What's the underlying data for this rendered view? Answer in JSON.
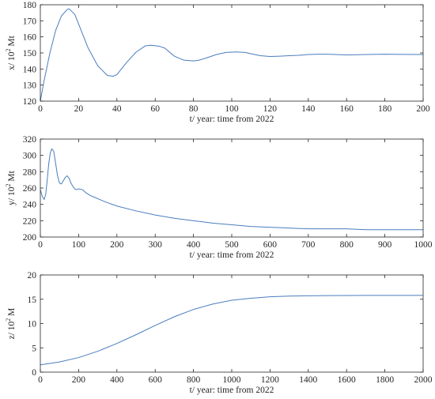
{
  "chart_data": [
    {
      "type": "line",
      "xlabel": "t/ year: time from 2022",
      "ylabel": "x/ 10",
      "ylabel_sup": "2",
      "ylabel_unit": " Mt",
      "xlim": [
        0,
        200
      ],
      "ylim": [
        120,
        180
      ],
      "xticks": [
        0,
        20,
        40,
        60,
        80,
        100,
        120,
        140,
        160,
        180,
        200
      ],
      "yticks": [
        120,
        130,
        140,
        150,
        160,
        170,
        180
      ],
      "grid": false,
      "color": "#4a7dbf",
      "series": [
        {
          "x": [
            0,
            2,
            5,
            8,
            11,
            14,
            15,
            18,
            20,
            25,
            30,
            35,
            38,
            40,
            45,
            50,
            55,
            58,
            60,
            62,
            65,
            70,
            75,
            80,
            83,
            87,
            92,
            97,
            102,
            107,
            110,
            115,
            120,
            125,
            130,
            135,
            140,
            145,
            150,
            160,
            170,
            180,
            190,
            200
          ],
          "y": [
            120,
            133,
            150,
            164,
            173,
            177,
            177.5,
            174,
            168,
            153,
            142,
            136,
            135.5,
            136.5,
            144,
            150.5,
            154.5,
            154.8,
            154.5,
            154.2,
            153,
            148,
            145.5,
            145,
            145.5,
            147,
            149,
            150.3,
            150.6,
            150.3,
            149.5,
            148.3,
            147.8,
            148,
            148.3,
            148.5,
            149,
            149.2,
            149.2,
            148.8,
            149,
            149.2,
            149.1,
            149
          ]
        }
      ]
    },
    {
      "type": "line",
      "xlabel": "t/ year: time from 2022",
      "ylabel": "y/ 10",
      "ylabel_sup": "2",
      "ylabel_unit": " Mt",
      "xlim": [
        0,
        1000
      ],
      "ylim": [
        200,
        320
      ],
      "xticks": [
        0,
        100,
        200,
        300,
        400,
        500,
        600,
        700,
        800,
        900,
        1000
      ],
      "yticks": [
        200,
        220,
        240,
        260,
        280,
        300,
        320
      ],
      "grid": false,
      "color": "#4a7dbf",
      "series": [
        {
          "x": [
            0,
            5,
            10,
            14,
            18,
            22,
            26,
            30,
            35,
            40,
            45,
            50,
            55,
            60,
            65,
            70,
            75,
            80,
            85,
            90,
            95,
            100,
            110,
            120,
            130,
            140,
            150,
            170,
            200,
            250,
            300,
            350,
            400,
            450,
            500,
            550,
            600,
            650,
            700,
            750,
            800,
            850,
            900,
            950,
            1000
          ],
          "y": [
            258,
            250,
            246,
            252,
            270,
            290,
            303,
            308,
            305,
            290,
            275,
            266,
            265,
            269,
            273,
            275,
            272,
            266,
            262,
            259,
            258,
            259,
            258,
            254,
            251,
            249,
            247,
            243,
            238,
            232,
            227,
            223,
            220,
            217,
            215,
            213,
            212,
            211,
            210,
            210,
            210,
            209,
            209,
            209,
            209
          ]
        }
      ]
    },
    {
      "type": "line",
      "xlabel": "t/ year: time from 2022",
      "ylabel": "z/ 10",
      "ylabel_sup": "2",
      "ylabel_unit": " M",
      "xlim": [
        0,
        2000
      ],
      "ylim": [
        0,
        20
      ],
      "xticks": [
        0,
        200,
        400,
        600,
        800,
        1000,
        1200,
        1400,
        1600,
        1800,
        2000
      ],
      "yticks": [
        0,
        5,
        10,
        15,
        20
      ],
      "grid": false,
      "color": "#4a7dbf",
      "series": [
        {
          "x": [
            0,
            100,
            200,
            300,
            400,
            500,
            600,
            700,
            800,
            900,
            1000,
            1100,
            1200,
            1300,
            1400,
            1500,
            1600,
            1700,
            1800,
            1900,
            2000
          ],
          "y": [
            1.5,
            2.1,
            3.0,
            4.3,
            5.9,
            7.7,
            9.6,
            11.4,
            12.9,
            14.0,
            14.8,
            15.2,
            15.5,
            15.65,
            15.72,
            15.76,
            15.78,
            15.79,
            15.8,
            15.8,
            15.8
          ]
        }
      ]
    }
  ]
}
